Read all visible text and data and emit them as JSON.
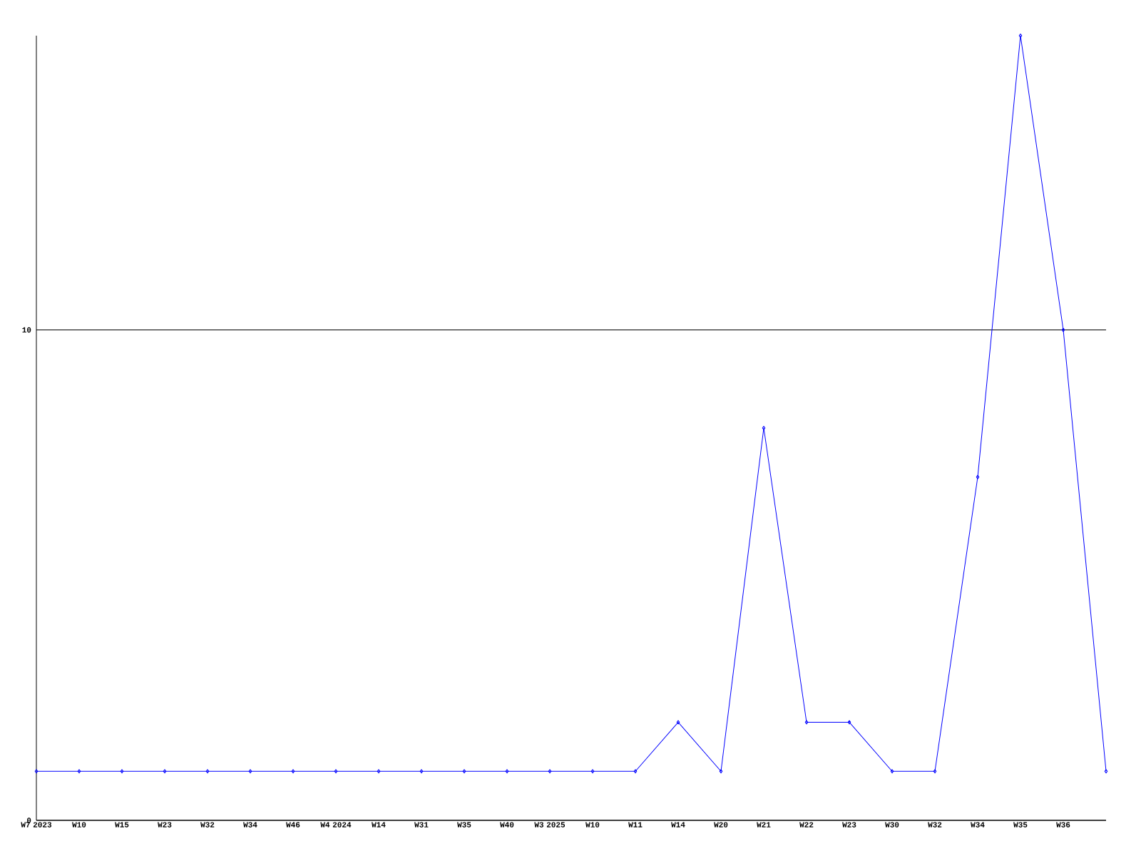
{
  "chart_data": {
    "type": "line",
    "categories": [
      "W7 2023",
      "W10",
      "W15",
      "W23",
      "W32",
      "W34",
      "W46",
      "W4 2024",
      "W14",
      "W31",
      "W35",
      "W40",
      "W3 2025",
      "W10",
      "W11",
      "W14",
      "W20",
      "W21",
      "W22",
      "W23",
      "W30",
      "W32",
      "W34",
      "W35",
      "W36",
      null
    ],
    "values": [
      1,
      1,
      1,
      1,
      1,
      1,
      1,
      1,
      1,
      1,
      1,
      1,
      1,
      1,
      1,
      2,
      1,
      8,
      2,
      2,
      1,
      1,
      7,
      16,
      10,
      1
    ],
    "color": "#0000ff",
    "ylim": [
      0,
      16
    ],
    "yticks": [
      0,
      10
    ],
    "grid": "y",
    "marker": "diamond",
    "line_style": "solid"
  }
}
